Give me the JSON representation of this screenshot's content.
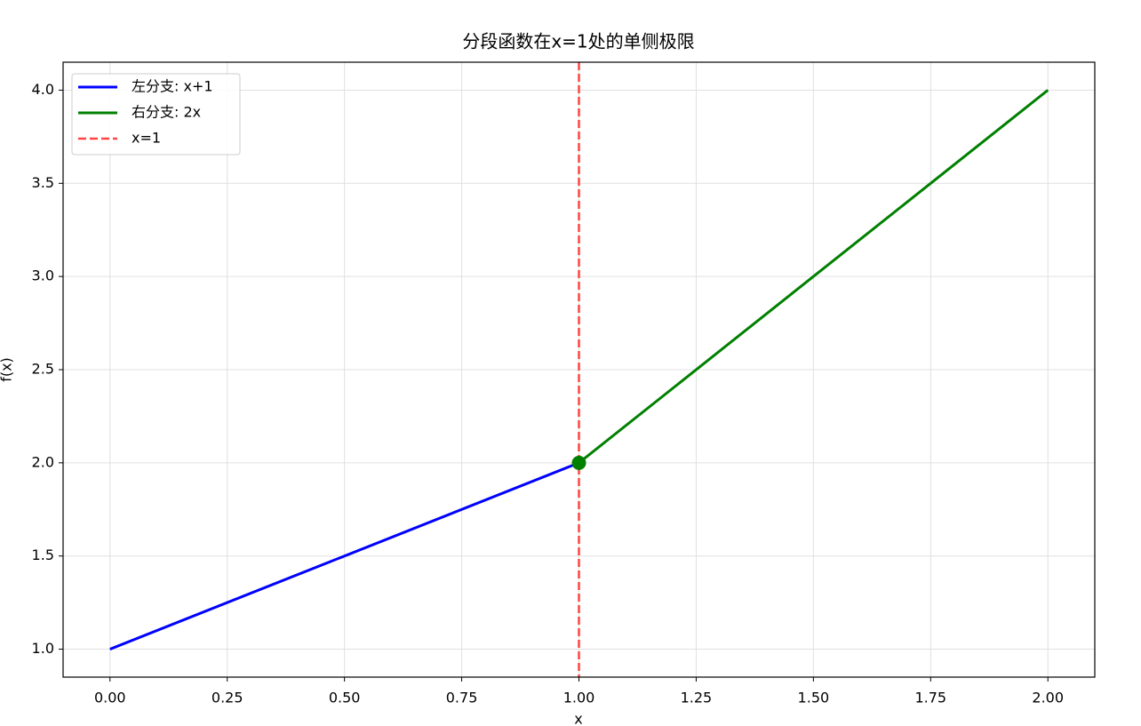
{
  "chart_data": {
    "type": "line",
    "title": "分段函数在x=1处的单侧极限",
    "x_label": "x",
    "y_label": "f(x)",
    "series": [
      {
        "name": "左分支: x+1",
        "color": "#0000ff",
        "x": [
          0,
          1
        ],
        "values": [
          1,
          2
        ]
      },
      {
        "name": "右分支: 2x",
        "color": "#008000",
        "x": [
          1,
          2
        ],
        "values": [
          2,
          4
        ]
      }
    ],
    "vlines": [
      {
        "name": "x=1",
        "x": 1,
        "color": "#ff4444",
        "dashed": true
      }
    ],
    "points": [
      {
        "x": 1,
        "y": 2,
        "color": "#008000"
      }
    ],
    "xlim": [
      -0.1,
      2.1
    ],
    "ylim": [
      0.85,
      4.15
    ],
    "xticks": [
      {
        "value": 0,
        "label": "0.00"
      },
      {
        "value": 0.25,
        "label": "0.25"
      },
      {
        "value": 0.5,
        "label": "0.50"
      },
      {
        "value": 0.75,
        "label": "0.75"
      },
      {
        "value": 1,
        "label": "1.00"
      },
      {
        "value": 1.25,
        "label": "1.25"
      },
      {
        "value": 1.5,
        "label": "1.50"
      },
      {
        "value": 1.75,
        "label": "1.75"
      },
      {
        "value": 2,
        "label": "2.00"
      }
    ],
    "yticks": [
      {
        "value": 1,
        "label": "1.0"
      },
      {
        "value": 1.5,
        "label": "1.5"
      },
      {
        "value": 2,
        "label": "2.0"
      },
      {
        "value": 2.5,
        "label": "2.5"
      },
      {
        "value": 3,
        "label": "3.0"
      },
      {
        "value": 3.5,
        "label": "3.5"
      },
      {
        "value": 4,
        "label": "4.0"
      }
    ],
    "grid": true,
    "legend": "upper left"
  }
}
